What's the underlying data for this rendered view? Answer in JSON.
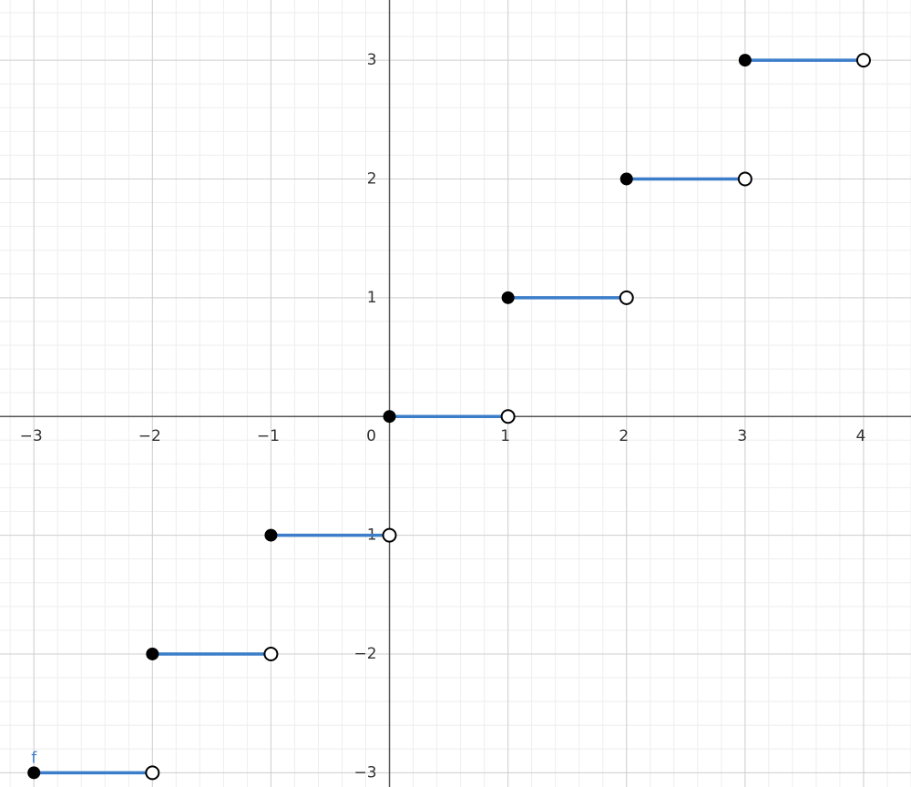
{
  "chart_data": {
    "type": "step",
    "xlim": [
      -3.286,
      4.4
    ],
    "ylim": [
      -3.12,
      3.507
    ],
    "xticks": [
      {
        "value": -3,
        "label": "−3"
      },
      {
        "value": -2,
        "label": "−2"
      },
      {
        "value": -1,
        "label": "−1"
      },
      0,
      1,
      2,
      3,
      4
    ],
    "yticks": [
      {
        "value": -3,
        "label": "−3"
      },
      {
        "value": -2,
        "label": "−2"
      },
      {
        "value": -1,
        "label": "−1"
      },
      1,
      2,
      3
    ],
    "grid": true,
    "series": [
      {
        "name": "f",
        "color": "#3b7dc9",
        "x": [
          -3,
          -2,
          -1,
          0,
          1,
          2,
          3
        ],
        "x_end": [
          -2,
          -1,
          0,
          1,
          2,
          3,
          4
        ],
        "values": [
          -3,
          -2,
          -1,
          0,
          1,
          2,
          3
        ]
      }
    ]
  }
}
